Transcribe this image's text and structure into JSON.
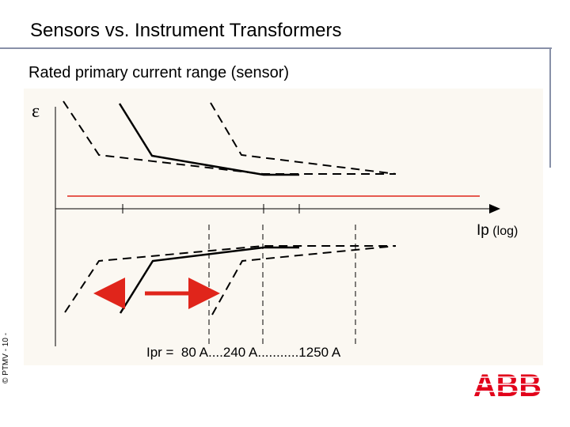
{
  "slide": {
    "title": "Sensors vs. Instrument Transformers",
    "subtitle": "Rated primary current range (sensor)",
    "copyright": "© PTMV  - 10 -"
  },
  "diagram": {
    "epsilon_label": "ε",
    "xaxis_main": "Ip",
    "xaxis_suffix": " (log)",
    "ipr_label": "Ipr =  80 A....240 A...........1250 A"
  },
  "logo": {
    "text": "ABB"
  },
  "colors": {
    "background_panel": "#fbf8f2",
    "accent_red": "#e0251b",
    "rule": "#8890a8",
    "abb_red": "#e2001a"
  }
}
